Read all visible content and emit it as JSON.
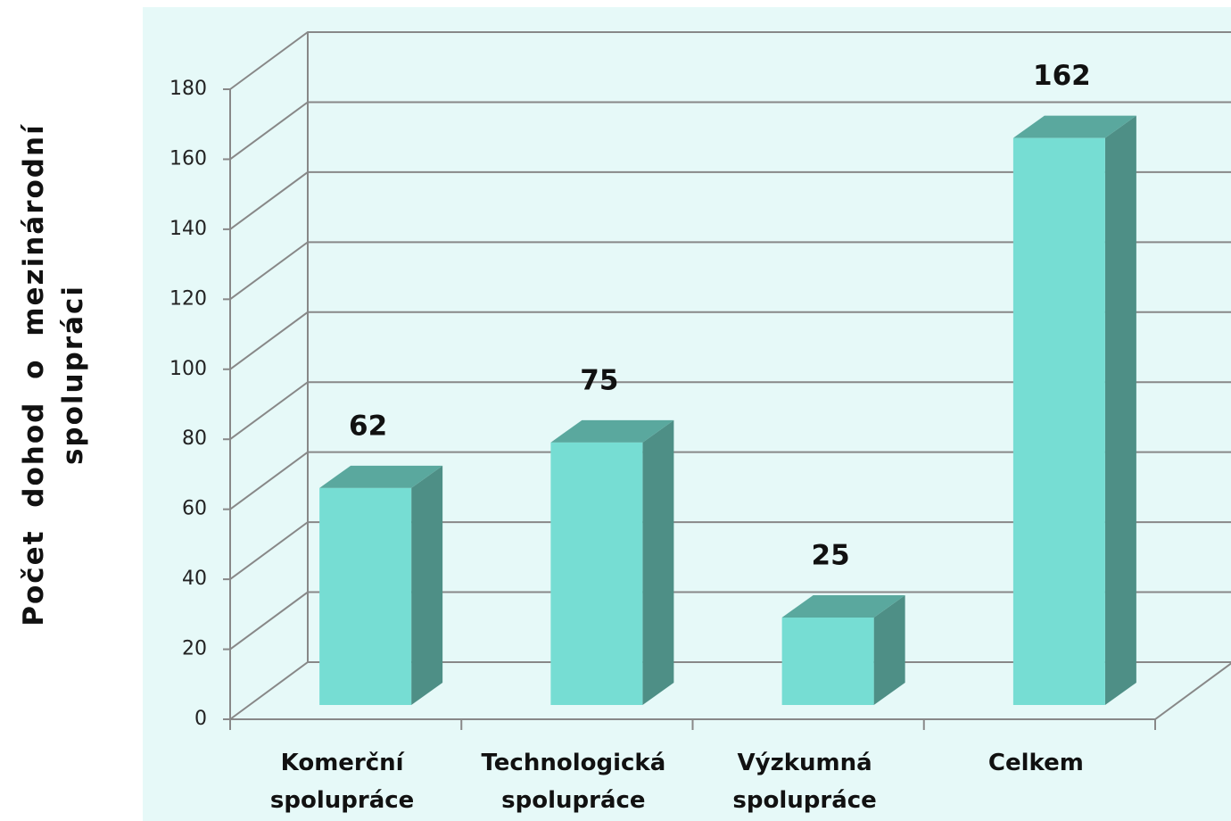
{
  "chart_data": {
    "type": "bar",
    "y_label": "Počet dohod o mezinárodní spolupráci",
    "categories": [
      "Komerční spolupráce",
      "Technologická spolupráce",
      "Výzkumná spolupráce",
      "Celkem"
    ],
    "values": [
      62,
      75,
      25,
      162
    ],
    "color": "#76ddd3",
    "ylim": [
      0,
      180
    ],
    "yticks": [
      0,
      20,
      40,
      60,
      80,
      100,
      120,
      140,
      160,
      180
    ],
    "grid": true
  }
}
